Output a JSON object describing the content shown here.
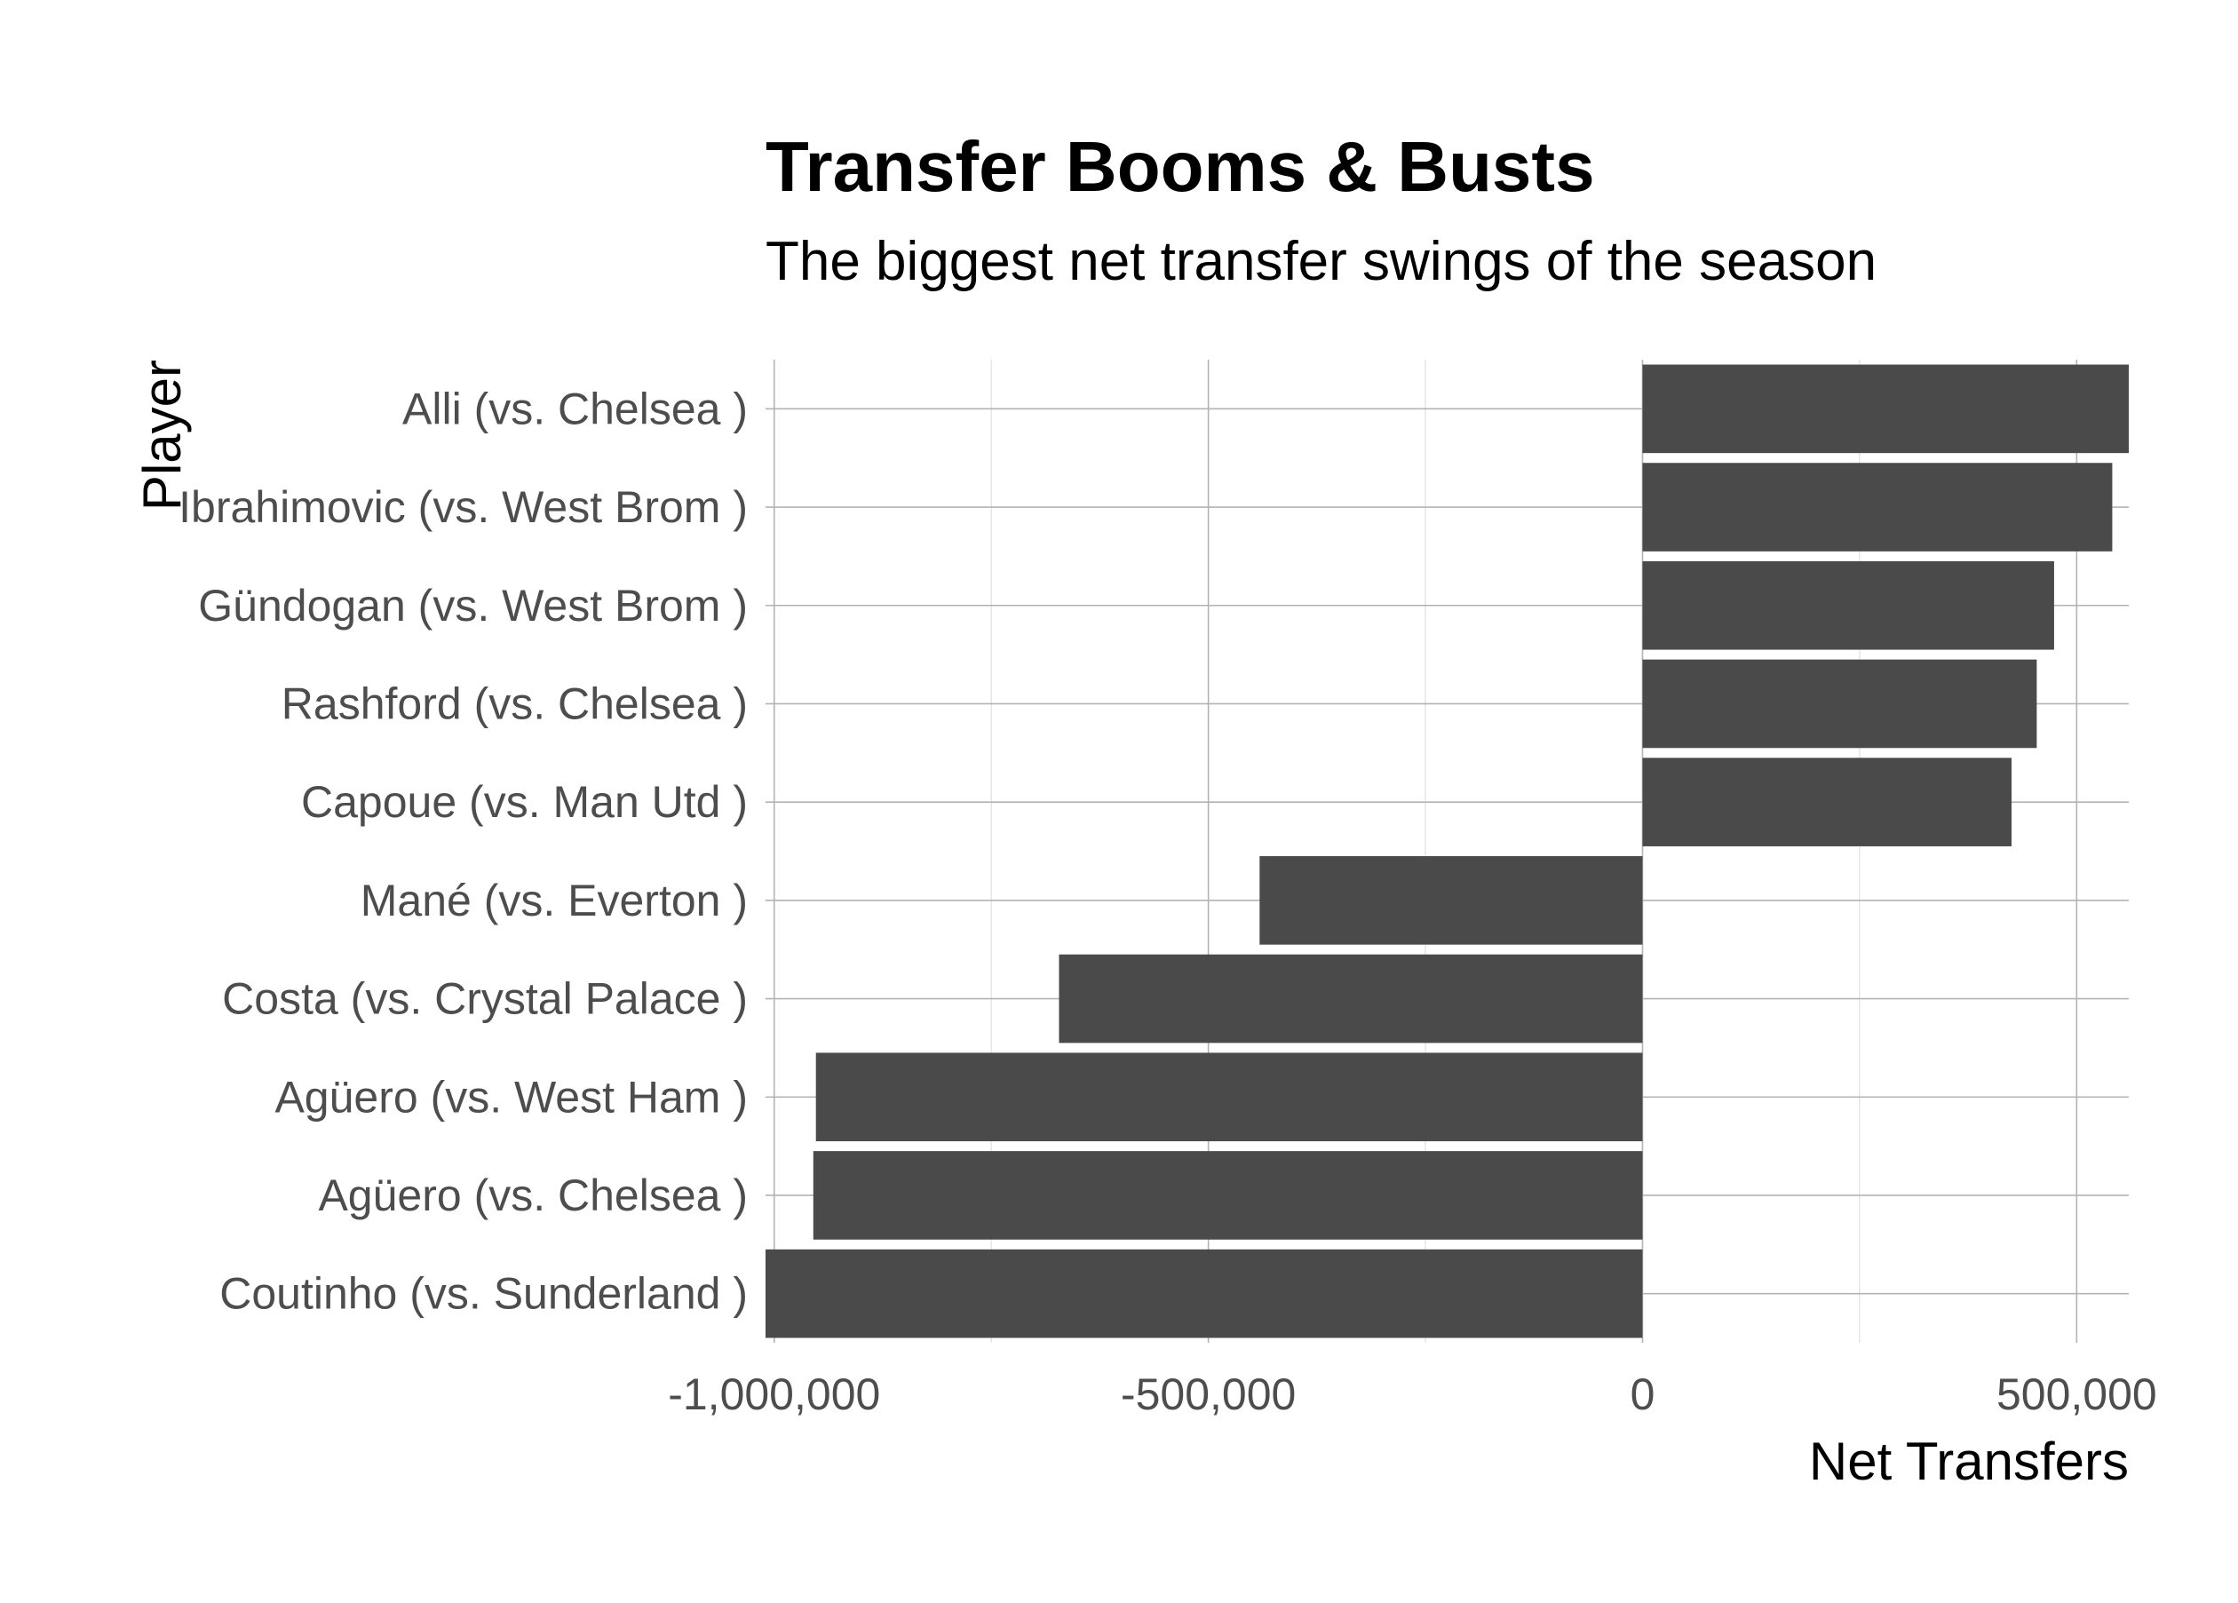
{
  "chart_data": {
    "type": "bar",
    "orientation": "horizontal",
    "title": "Transfer Booms & Busts",
    "subtitle": "The biggest net transfer swings of the season",
    "xlabel": "Net Transfers",
    "ylabel": "Player",
    "xlim": [
      -1010000,
      560000
    ],
    "x_ticks": [
      {
        "value": -1000000,
        "label": "-1,000,000"
      },
      {
        "value": -500000,
        "label": "-500,000"
      },
      {
        "value": 0,
        "label": "0"
      },
      {
        "value": 500000,
        "label": "500,000"
      }
    ],
    "grid": true,
    "bar_color": "#4a4a4a",
    "categories": [
      "Alli (vs. Chelsea )",
      "Ibrahimovic (vs. West Brom )",
      "Gündogan (vs. West Brom )",
      "Rashford (vs. Chelsea )",
      "Capoue (vs. Man Utd )",
      "Mané (vs. Everton )",
      "Costa (vs. Crystal Palace )",
      "Agüero (vs. West Ham )",
      "Agüero (vs. Chelsea )",
      "Coutinho (vs. Sunderland )"
    ],
    "values": [
      560000,
      541000,
      474000,
      454000,
      425000,
      -441000,
      -672000,
      -952000,
      -955000,
      -1010000
    ]
  }
}
